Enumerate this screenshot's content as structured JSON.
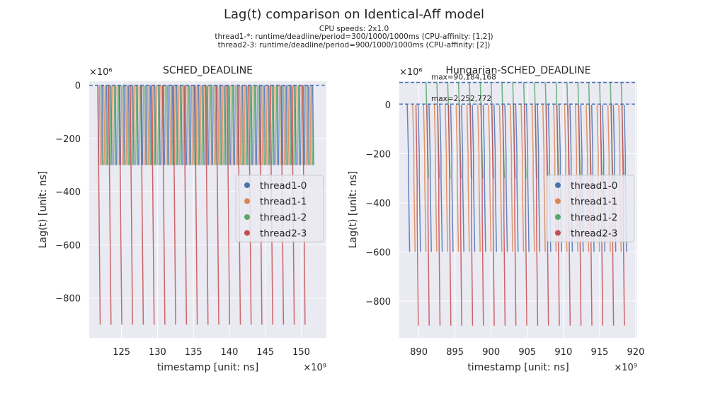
{
  "figure": {
    "title": "Lag(t) comparison on Identical-Aff model",
    "subtitle_lines": [
      "CPU speeds: 2x1.0",
      "thread1-*: runtime/deadline/period=300/1000/1000ms (CPU-affinity: [1,2])",
      "thread2-3: runtime/deadline/period=900/1000/1000ms (CPU-affinity: [2])"
    ]
  },
  "colors": {
    "background": "#eaeaf2",
    "grid": "#ffffff",
    "thread1-0": "#4c72b0",
    "thread1-1": "#dd8452",
    "thread1-2": "#55a868",
    "thread2-3": "#c44e52",
    "max_line": "#4c72b0"
  },
  "chart_data": [
    {
      "type": "line",
      "title": "SCHED_DEADLINE",
      "xlabel": "timestamp [unit: ns]",
      "ylabel": "Lag(t) [unit: ns]",
      "x_multiplier": "×10⁹",
      "y_multiplier": "×10⁶",
      "xlim": [
        120.5,
        153.5
      ],
      "ylim": [
        -950,
        15
      ],
      "xticks": [
        125,
        130,
        135,
        140,
        145,
        150
      ],
      "yticks": [
        0,
        -200,
        -400,
        -600,
        -800
      ],
      "grid": true,
      "legend_position": "center-right",
      "reference_lines": [
        {
          "y": 0,
          "style": "dashed",
          "label": ""
        }
      ],
      "series": [
        {
          "name": "thread1-0",
          "x_start": 121.7,
          "x_end": 151.7,
          "period": 0.61,
          "phase": 0.0,
          "min": -300,
          "shape": "sawtooth"
        },
        {
          "name": "thread1-1",
          "x_start": 121.8,
          "x_end": 151.8,
          "period": 0.61,
          "phase": 0.2,
          "min": -300,
          "shape": "sawtooth"
        },
        {
          "name": "thread1-2",
          "x_start": 121.9,
          "x_end": 151.9,
          "period": 0.61,
          "phase": 0.4,
          "min": -300,
          "shape": "sawtooth"
        },
        {
          "name": "thread2-3",
          "x_start": 121.7,
          "x_end": 151.7,
          "period": 1.5,
          "phase": 0.0,
          "min": -900,
          "shape": "sawtooth"
        }
      ]
    },
    {
      "type": "line",
      "title": "Hungarian-SCHED_DEADLINE",
      "xlabel": "timestamp [unit: ns]",
      "ylabel": "Lag(t) [unit: ns]",
      "x_multiplier": "×10⁹",
      "y_multiplier": "×10⁶",
      "xlim": [
        887.3,
        920.2
      ],
      "ylim": [
        -950,
        95
      ],
      "xticks": [
        890,
        895,
        900,
        905,
        910,
        915,
        920
      ],
      "yticks": [
        0,
        -200,
        -400,
        -600,
        -800
      ],
      "grid": true,
      "legend_position": "center-right",
      "reference_lines": [
        {
          "y": 90.184168,
          "style": "dashed",
          "label": "max=90,184,168"
        },
        {
          "y": 2.252772,
          "style": "dashed",
          "label": "max=2,252,772"
        }
      ],
      "series": [
        {
          "name": "thread1-0",
          "x_start": 888.4,
          "x_end": 918.6,
          "period": 1.5,
          "phase": 0.0,
          "min": -600,
          "shape": "staircase"
        },
        {
          "name": "thread1-1",
          "x_start": 888.4,
          "x_end": 918.6,
          "period": 1.5,
          "phase": 0.5,
          "min": -600,
          "shape": "staircase"
        },
        {
          "name": "thread1-2",
          "x_start": 891.0,
          "x_end": 918.6,
          "period": 1.5,
          "phase": 0.0,
          "min": -300,
          "shape": "peak",
          "peak": 90
        },
        {
          "name": "thread2-3",
          "x_start": 888.4,
          "x_end": 918.6,
          "period": 1.5,
          "phase": 0.8,
          "min": -900,
          "shape": "staircase"
        }
      ]
    }
  ]
}
